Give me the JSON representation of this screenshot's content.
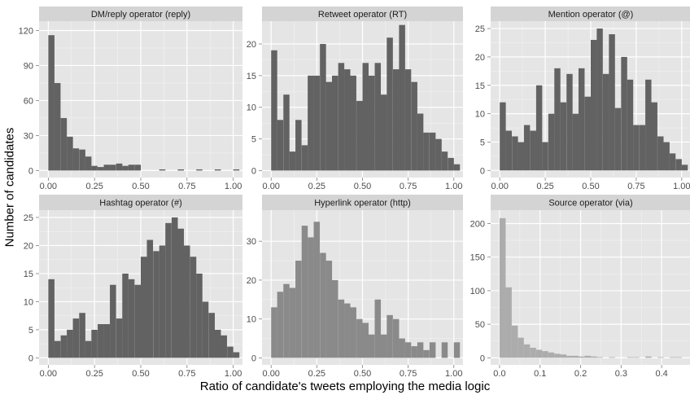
{
  "figure": {
    "xlabel": "Ratio of candidate's tweets employing the media logic",
    "ylabel": "Number of candidates"
  },
  "chart_data": [
    {
      "type": "bar",
      "title": "DM/reply operator (reply)",
      "bin_width": 0.0333,
      "x": [
        0.0,
        0.033,
        0.067,
        0.1,
        0.133,
        0.167,
        0.2,
        0.233,
        0.267,
        0.3,
        0.333,
        0.367,
        0.4,
        0.433,
        0.467,
        0.5,
        0.533,
        0.567,
        0.6,
        0.633,
        0.667,
        0.7,
        0.733,
        0.767,
        0.8,
        0.833,
        0.867,
        0.9,
        0.933,
        0.967,
        1.0
      ],
      "values": [
        116,
        75,
        45,
        29,
        19,
        18,
        12,
        4,
        3,
        5,
        5,
        6,
        4,
        5,
        5,
        0,
        0,
        0,
        1,
        0,
        0,
        1,
        0,
        0,
        1,
        0,
        0,
        1,
        0,
        0,
        1
      ],
      "xlim": [
        -0.05,
        1.05
      ],
      "ylim": [
        -6,
        128
      ],
      "xticks": [
        0,
        0.25,
        0.5,
        0.75,
        1.0
      ],
      "xtick_labels": [
        "0.00",
        "0.25",
        "0.50",
        "0.75",
        "1.00"
      ],
      "yticks": [
        0,
        30,
        60,
        90,
        120
      ],
      "ytick_labels": [
        "0",
        "30",
        "60",
        "90",
        "120"
      ],
      "fill": "#626262",
      "grid": true
    },
    {
      "type": "bar",
      "title": "Retweet operator (RT)",
      "bin_width": 0.0333,
      "x": [
        0.0,
        0.033,
        0.067,
        0.1,
        0.133,
        0.167,
        0.2,
        0.233,
        0.267,
        0.3,
        0.333,
        0.367,
        0.4,
        0.433,
        0.467,
        0.5,
        0.533,
        0.567,
        0.6,
        0.633,
        0.667,
        0.7,
        0.733,
        0.767,
        0.8,
        0.833,
        0.867,
        0.9,
        0.933,
        0.967,
        1.0
      ],
      "values": [
        19,
        8,
        12,
        3,
        8,
        4,
        15,
        15,
        20,
        14,
        15,
        17,
        16,
        15,
        11,
        17,
        15,
        17,
        12,
        21,
        16,
        23,
        16,
        14,
        9,
        6,
        6,
        5,
        3,
        2,
        1
      ],
      "xlim": [
        -0.05,
        1.05
      ],
      "ylim": [
        -1.1,
        23.6
      ],
      "xticks": [
        0,
        0.25,
        0.5,
        0.75,
        1.0
      ],
      "xtick_labels": [
        "0.00",
        "0.25",
        "0.50",
        "0.75",
        "1.00"
      ],
      "yticks": [
        0,
        5,
        10,
        15,
        20
      ],
      "ytick_labels": [
        "0",
        "5",
        "10",
        "15",
        "20"
      ],
      "fill": "#626262",
      "grid": true
    },
    {
      "type": "bar",
      "title": "Mention operator (@)",
      "bin_width": 0.0333,
      "x": [
        0.0,
        0.033,
        0.067,
        0.1,
        0.133,
        0.167,
        0.2,
        0.233,
        0.267,
        0.3,
        0.333,
        0.367,
        0.4,
        0.433,
        0.467,
        0.5,
        0.533,
        0.567,
        0.6,
        0.633,
        0.667,
        0.7,
        0.733,
        0.767,
        0.8,
        0.833,
        0.867,
        0.9,
        0.933,
        0.967,
        1.0
      ],
      "values": [
        12,
        7,
        6,
        5,
        8,
        7,
        15,
        5,
        10,
        18,
        12,
        17,
        10,
        18,
        13,
        23,
        25,
        17,
        24,
        11,
        20,
        16,
        8,
        8,
        16,
        12,
        6,
        5,
        3,
        2,
        1
      ],
      "xlim": [
        -0.05,
        1.05
      ],
      "ylim": [
        -1.25,
        26.3
      ],
      "xticks": [
        0,
        0.25,
        0.5,
        0.75,
        1.0
      ],
      "xtick_labels": [
        "0.00",
        "0.25",
        "0.50",
        "0.75",
        "1.00"
      ],
      "yticks": [
        0,
        5,
        10,
        15,
        20,
        25
      ],
      "ytick_labels": [
        "0",
        "5",
        "10",
        "15",
        "20",
        "25"
      ],
      "fill": "#626262",
      "grid": true
    },
    {
      "type": "bar",
      "title": "Hashtag operator (#)",
      "bin_width": 0.0333,
      "x": [
        0.0,
        0.033,
        0.067,
        0.1,
        0.133,
        0.167,
        0.2,
        0.233,
        0.267,
        0.3,
        0.333,
        0.367,
        0.4,
        0.433,
        0.467,
        0.5,
        0.533,
        0.567,
        0.6,
        0.633,
        0.667,
        0.7,
        0.733,
        0.767,
        0.8,
        0.833,
        0.867,
        0.9,
        0.933,
        0.967,
        1.0
      ],
      "values": [
        14,
        3,
        4,
        5,
        7,
        8,
        3,
        5,
        6,
        6,
        13,
        7,
        15,
        14,
        13,
        18,
        21,
        19,
        20,
        24,
        25,
        23,
        20,
        18,
        15,
        10,
        8,
        5,
        4,
        2,
        1
      ],
      "xlim": [
        -0.05,
        1.05
      ],
      "ylim": [
        -1.25,
        26.3
      ],
      "xticks": [
        0,
        0.25,
        0.5,
        0.75,
        1.0
      ],
      "xtick_labels": [
        "0.00",
        "0.25",
        "0.50",
        "0.75",
        "1.00"
      ],
      "yticks": [
        0,
        5,
        10,
        15,
        20,
        25
      ],
      "ytick_labels": [
        "0",
        "5",
        "10",
        "15",
        "20",
        "25"
      ],
      "fill": "#626262",
      "grid": true
    },
    {
      "type": "bar",
      "title": "Hyperlink operator (http)",
      "bin_width": 0.0333,
      "x": [
        0.0,
        0.033,
        0.067,
        0.1,
        0.133,
        0.167,
        0.2,
        0.233,
        0.267,
        0.3,
        0.333,
        0.367,
        0.4,
        0.433,
        0.467,
        0.5,
        0.533,
        0.567,
        0.6,
        0.633,
        0.667,
        0.7,
        0.733,
        0.767,
        0.8,
        0.833,
        0.867,
        0.9,
        0.933,
        0.967,
        1.0
      ],
      "values": [
        13,
        17,
        19,
        18,
        25,
        34,
        31,
        35,
        27,
        25,
        20,
        15,
        14,
        13,
        10,
        9,
        6,
        15,
        6,
        11,
        10,
        5,
        4,
        3,
        4,
        2,
        4,
        0,
        4,
        0,
        4
      ],
      "xlim": [
        -0.05,
        1.05
      ],
      "ylim": [
        -1.8,
        38
      ],
      "xticks": [
        0,
        0.25,
        0.5,
        0.75,
        1.0
      ],
      "xtick_labels": [
        "0.00",
        "0.25",
        "0.50",
        "0.75",
        "1.00"
      ],
      "yticks": [
        0,
        10,
        20,
        30
      ],
      "ytick_labels": [
        "0",
        "10",
        "20",
        "30"
      ],
      "fill": "#8a8a8a",
      "grid": true
    },
    {
      "type": "bar",
      "title": "Source operator (via)",
      "bin_width": 0.015,
      "x": [
        0.0,
        0.015,
        0.03,
        0.045,
        0.06,
        0.075,
        0.09,
        0.105,
        0.12,
        0.135,
        0.15,
        0.165,
        0.18,
        0.195,
        0.21,
        0.225,
        0.24,
        0.255,
        0.27,
        0.285,
        0.3,
        0.315,
        0.33,
        0.345,
        0.36,
        0.375,
        0.39,
        0.405,
        0.42,
        0.435
      ],
      "values": [
        208,
        105,
        48,
        30,
        20,
        15,
        12,
        10,
        8,
        6,
        5,
        3,
        3,
        2,
        3,
        2,
        1,
        0,
        1,
        0,
        0,
        1,
        1,
        0,
        2,
        0,
        1,
        0,
        1,
        1
      ],
      "xlim": [
        -0.022,
        0.472
      ],
      "ylim": [
        -10.5,
        220
      ],
      "xticks": [
        0,
        0.1,
        0.2,
        0.3,
        0.4
      ],
      "xtick_labels": [
        "0.0",
        "0.1",
        "0.2",
        "0.3",
        "0.4"
      ],
      "yticks": [
        0,
        50,
        100,
        150,
        200
      ],
      "ytick_labels": [
        "0",
        "50",
        "100",
        "150",
        "200"
      ],
      "fill": "#acacac",
      "grid": true
    }
  ]
}
